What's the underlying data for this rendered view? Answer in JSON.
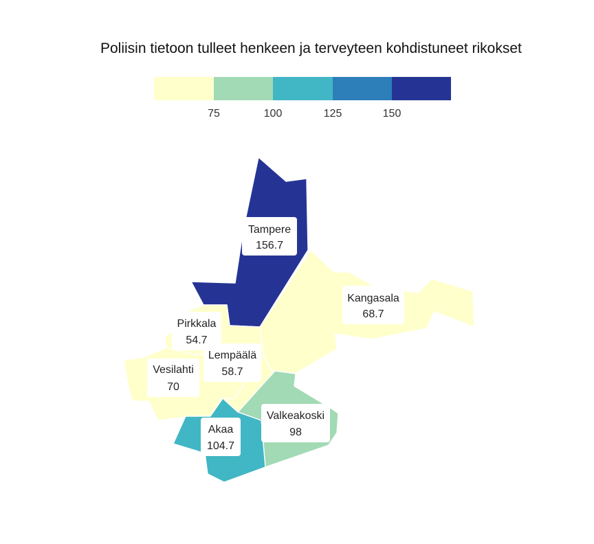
{
  "chart_data": {
    "type": "choropleth",
    "title": "Poliisin tietoon tulleet henkeen ja terveyteen kohdistuneet rikokset",
    "legend": {
      "bins": [
        {
          "from": null,
          "to": 75,
          "color": "#ffffcc"
        },
        {
          "from": 75,
          "to": 100,
          "color": "#a1dab4"
        },
        {
          "from": 100,
          "to": 125,
          "color": "#41b6c4"
        },
        {
          "from": 125,
          "to": 150,
          "color": "#2c7fb8"
        },
        {
          "from": 150,
          "to": null,
          "color": "#253494"
        }
      ],
      "tick_labels": [
        "75",
        "100",
        "125",
        "150"
      ]
    },
    "regions": [
      {
        "id": "tampere",
        "name": "Tampere",
        "value_label": "156.7",
        "value": 156.7
      },
      {
        "id": "kangasala",
        "name": "Kangasala",
        "value_label": "68.7",
        "value": 68.7
      },
      {
        "id": "pirkkala",
        "name": "Pirkkala",
        "value_label": "54.7",
        "value": 54.7
      },
      {
        "id": "lempaala",
        "name": "Lempäälä",
        "value_label": "58.7",
        "value": 58.7
      },
      {
        "id": "vesilahti",
        "name": "Vesilahti",
        "value_label": "70",
        "value": 70
      },
      {
        "id": "valkeakoski",
        "name": "Valkeakoski",
        "value_label": "98",
        "value": 98
      },
      {
        "id": "akaa",
        "name": "Akaa",
        "value_label": "104.7",
        "value": 104.7
      }
    ]
  }
}
